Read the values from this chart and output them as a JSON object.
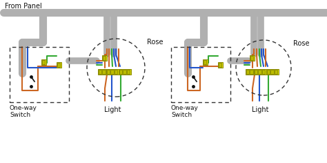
{
  "bg_color": "#ffffff",
  "gray": "#b0b0b0",
  "brown": "#cc6622",
  "blue": "#2255cc",
  "green": "#33aa33",
  "yellow_fill": "#dddd00",
  "yellow_edge": "#888800",
  "black": "#111111",
  "dash_color": "#333333",
  "text_color": "#111111",
  "glw": 7,
  "wlw": 1.5,
  "labels": {
    "from_panel": "From Panel",
    "switch": "One-way\nSwitch",
    "light": "Light",
    "rose": "Rose"
  }
}
